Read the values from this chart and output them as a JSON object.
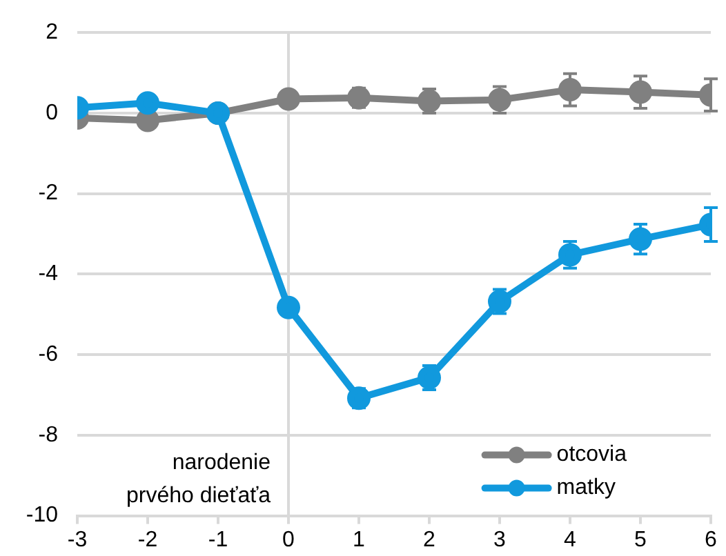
{
  "chart_data": {
    "type": "line",
    "x": [
      -3,
      -2,
      -1,
      0,
      1,
      2,
      3,
      4,
      5,
      6
    ],
    "series": [
      {
        "name": "otcovia",
        "color": "#808080",
        "values": [
          -0.12,
          -0.18,
          0,
          0.35,
          0.38,
          0.3,
          0.33,
          0.58,
          0.52,
          0.45
        ],
        "errors": [
          null,
          null,
          null,
          null,
          0.24,
          0.3,
          0.33,
          0.4,
          0.4,
          0.4
        ]
      },
      {
        "name": "matky",
        "color": "#1199dd",
        "values": [
          0.13,
          0.25,
          0,
          -4.83,
          -7.08,
          -6.57,
          -4.68,
          -3.52,
          -3.13,
          -2.77
        ],
        "errors": [
          null,
          null,
          null,
          null,
          0.24,
          0.3,
          0.3,
          0.33,
          0.37,
          0.42
        ]
      }
    ],
    "xlim": [
      -3,
      6
    ],
    "xticks": [
      -3,
      -2,
      -1,
      0,
      1,
      2,
      3,
      4,
      5,
      6
    ],
    "ylim": [
      -10,
      2
    ],
    "yticks": [
      -10,
      -8,
      -6,
      -4,
      -2,
      0,
      2
    ],
    "grid": "y",
    "legend": "bottom right",
    "marker": "circle",
    "line_style": "solid",
    "ref_lines": [
      {
        "axis": "x",
        "value": 0,
        "label": "narodenie\nprvého dieťaťa",
        "color": "#d9d9d9"
      }
    ]
  }
}
